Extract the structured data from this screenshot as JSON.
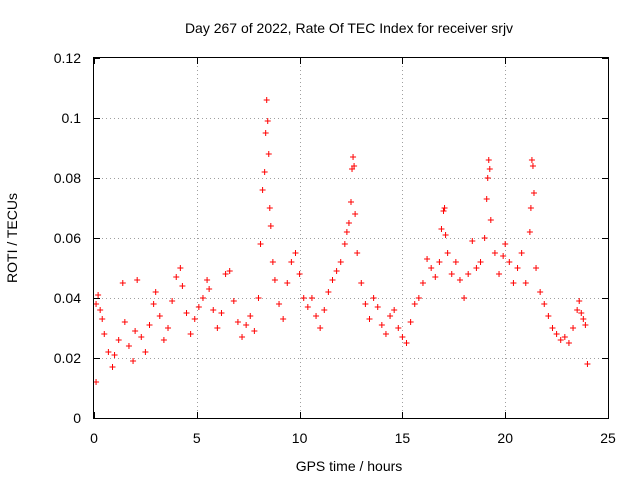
{
  "chart_data": {
    "type": "scatter",
    "title": "Day 267 of 2022, Rate Of TEC Index for receiver srjv",
    "xlabel": "GPS time / hours",
    "ylabel": "ROTI / TECUs",
    "xlim": [
      0,
      25
    ],
    "ylim": [
      0,
      0.12
    ],
    "xticks": [
      0,
      5,
      10,
      15,
      20,
      25
    ],
    "xtick_labels": [
      "0",
      "5",
      "10",
      "15",
      "20",
      "25"
    ],
    "yticks": [
      0,
      0.02,
      0.04,
      0.06,
      0.08,
      0.1,
      0.12
    ],
    "ytick_labels": [
      "0",
      "0.02",
      "0.04",
      "0.06",
      "0.08",
      "0.1",
      "0.12"
    ],
    "grid": true,
    "marker": "+",
    "color": "#ff0000",
    "series": [
      {
        "name": "ROTI",
        "points": [
          [
            0.1,
            0.012
          ],
          [
            0.1,
            0.038
          ],
          [
            0.2,
            0.041
          ],
          [
            0.3,
            0.036
          ],
          [
            0.4,
            0.033
          ],
          [
            0.5,
            0.028
          ],
          [
            0.7,
            0.022
          ],
          [
            0.9,
            0.017
          ],
          [
            1.0,
            0.021
          ],
          [
            1.2,
            0.026
          ],
          [
            1.4,
            0.045
          ],
          [
            1.5,
            0.032
          ],
          [
            1.7,
            0.024
          ],
          [
            1.9,
            0.019
          ],
          [
            2.0,
            0.029
          ],
          [
            2.1,
            0.046
          ],
          [
            2.3,
            0.027
          ],
          [
            2.5,
            0.022
          ],
          [
            2.7,
            0.031
          ],
          [
            2.9,
            0.038
          ],
          [
            3.0,
            0.042
          ],
          [
            3.2,
            0.034
          ],
          [
            3.4,
            0.026
          ],
          [
            3.6,
            0.03
          ],
          [
            3.8,
            0.039
          ],
          [
            4.0,
            0.047
          ],
          [
            4.2,
            0.05
          ],
          [
            4.3,
            0.044
          ],
          [
            4.5,
            0.035
          ],
          [
            4.7,
            0.028
          ],
          [
            4.9,
            0.033
          ],
          [
            5.1,
            0.037
          ],
          [
            5.3,
            0.04
          ],
          [
            5.5,
            0.046
          ],
          [
            5.6,
            0.043
          ],
          [
            5.8,
            0.036
          ],
          [
            6.0,
            0.03
          ],
          [
            6.2,
            0.035
          ],
          [
            6.4,
            0.048
          ],
          [
            6.6,
            0.049
          ],
          [
            6.8,
            0.039
          ],
          [
            7.0,
            0.032
          ],
          [
            7.2,
            0.027
          ],
          [
            7.4,
            0.031
          ],
          [
            7.6,
            0.034
          ],
          [
            7.8,
            0.029
          ],
          [
            8.0,
            0.04
          ],
          [
            8.1,
            0.058
          ],
          [
            8.2,
            0.076
          ],
          [
            8.3,
            0.082
          ],
          [
            8.35,
            0.095
          ],
          [
            8.4,
            0.106
          ],
          [
            8.45,
            0.099
          ],
          [
            8.5,
            0.088
          ],
          [
            8.55,
            0.07
          ],
          [
            8.6,
            0.064
          ],
          [
            8.7,
            0.052
          ],
          [
            8.8,
            0.046
          ],
          [
            9.0,
            0.038
          ],
          [
            9.2,
            0.033
          ],
          [
            9.4,
            0.045
          ],
          [
            9.6,
            0.052
          ],
          [
            9.8,
            0.055
          ],
          [
            10.0,
            0.048
          ],
          [
            10.2,
            0.04
          ],
          [
            10.4,
            0.037
          ],
          [
            10.6,
            0.04
          ],
          [
            10.8,
            0.034
          ],
          [
            11.0,
            0.03
          ],
          [
            11.2,
            0.036
          ],
          [
            11.4,
            0.042
          ],
          [
            11.6,
            0.046
          ],
          [
            11.8,
            0.049
          ],
          [
            12.0,
            0.052
          ],
          [
            12.2,
            0.058
          ],
          [
            12.3,
            0.062
          ],
          [
            12.4,
            0.065
          ],
          [
            12.5,
            0.072
          ],
          [
            12.55,
            0.083
          ],
          [
            12.6,
            0.087
          ],
          [
            12.65,
            0.084
          ],
          [
            12.7,
            0.068
          ],
          [
            12.8,
            0.055
          ],
          [
            13.0,
            0.045
          ],
          [
            13.2,
            0.038
          ],
          [
            13.4,
            0.033
          ],
          [
            13.6,
            0.04
          ],
          [
            13.8,
            0.037
          ],
          [
            14.0,
            0.031
          ],
          [
            14.2,
            0.028
          ],
          [
            14.4,
            0.034
          ],
          [
            14.6,
            0.036
          ],
          [
            14.8,
            0.03
          ],
          [
            15.0,
            0.027
          ],
          [
            15.2,
            0.025
          ],
          [
            15.4,
            0.032
          ],
          [
            15.6,
            0.038
          ],
          [
            15.8,
            0.04
          ],
          [
            16.0,
            0.045
          ],
          [
            16.2,
            0.053
          ],
          [
            16.4,
            0.05
          ],
          [
            16.6,
            0.047
          ],
          [
            16.8,
            0.052
          ],
          [
            16.9,
            0.063
          ],
          [
            17.0,
            0.069
          ],
          [
            17.05,
            0.07
          ],
          [
            17.1,
            0.061
          ],
          [
            17.2,
            0.055
          ],
          [
            17.4,
            0.048
          ],
          [
            17.6,
            0.052
          ],
          [
            17.8,
            0.046
          ],
          [
            18.0,
            0.04
          ],
          [
            18.2,
            0.048
          ],
          [
            18.4,
            0.059
          ],
          [
            18.6,
            0.05
          ],
          [
            18.8,
            0.052
          ],
          [
            19.0,
            0.06
          ],
          [
            19.1,
            0.073
          ],
          [
            19.15,
            0.08
          ],
          [
            19.2,
            0.086
          ],
          [
            19.25,
            0.083
          ],
          [
            19.3,
            0.066
          ],
          [
            19.5,
            0.055
          ],
          [
            19.7,
            0.048
          ],
          [
            19.9,
            0.054
          ],
          [
            20.0,
            0.058
          ],
          [
            20.2,
            0.052
          ],
          [
            20.4,
            0.045
          ],
          [
            20.6,
            0.05
          ],
          [
            20.8,
            0.055
          ],
          [
            21.0,
            0.045
          ],
          [
            21.2,
            0.062
          ],
          [
            21.25,
            0.07
          ],
          [
            21.3,
            0.086
          ],
          [
            21.35,
            0.084
          ],
          [
            21.4,
            0.075
          ],
          [
            21.5,
            0.05
          ],
          [
            21.7,
            0.042
          ],
          [
            21.9,
            0.038
          ],
          [
            22.1,
            0.034
          ],
          [
            22.3,
            0.03
          ],
          [
            22.5,
            0.028
          ],
          [
            22.7,
            0.026
          ],
          [
            22.9,
            0.027
          ],
          [
            23.1,
            0.025
          ],
          [
            23.3,
            0.03
          ],
          [
            23.5,
            0.036
          ],
          [
            23.6,
            0.039
          ],
          [
            23.7,
            0.035
          ],
          [
            23.8,
            0.033
          ],
          [
            23.9,
            0.031
          ],
          [
            24.0,
            0.018
          ]
        ]
      }
    ]
  }
}
